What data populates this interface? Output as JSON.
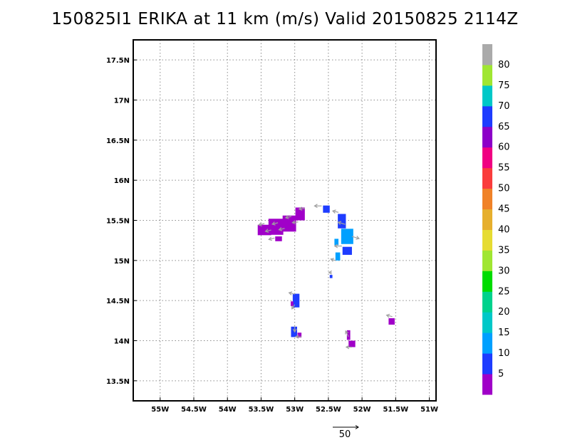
{
  "chart_data": {
    "type": "heatmap",
    "title": "150825I1 ERIKA at 11 km (m/s) Valid 20150825 2114Z",
    "xlabel": "",
    "ylabel": "",
    "xlim": [
      -55.4,
      -50.9
    ],
    "ylim": [
      13.25,
      17.75
    ],
    "x_ticks": [
      {
        "value": -55.0,
        "label": "55W"
      },
      {
        "value": -54.5,
        "label": "54.5W"
      },
      {
        "value": -54.0,
        "label": "54W"
      },
      {
        "value": -53.5,
        "label": "53.5W"
      },
      {
        "value": -53.0,
        "label": "53W"
      },
      {
        "value": -52.5,
        "label": "52.5W"
      },
      {
        "value": -52.0,
        "label": "52W"
      },
      {
        "value": -51.5,
        "label": "51.5W"
      },
      {
        "value": -51.0,
        "label": "51W"
      }
    ],
    "y_ticks": [
      {
        "value": 13.5,
        "label": "13.5N"
      },
      {
        "value": 14.0,
        "label": "14N"
      },
      {
        "value": 14.5,
        "label": "14.5N"
      },
      {
        "value": 15.0,
        "label": "15N"
      },
      {
        "value": 15.5,
        "label": "15.5N"
      },
      {
        "value": 16.0,
        "label": "16N"
      },
      {
        "value": 16.5,
        "label": "16.5N"
      },
      {
        "value": 17.0,
        "label": "17N"
      },
      {
        "value": 17.5,
        "label": "17.5N"
      }
    ],
    "grid": true,
    "colorbar": {
      "labels": [
        "5",
        "10",
        "15",
        "20",
        "25",
        "30",
        "35",
        "40",
        "45",
        "50",
        "55",
        "60",
        "65",
        "70",
        "75",
        "80"
      ],
      "colors": [
        "#a000c8",
        "#1e3cff",
        "#00a0ff",
        "#00c8c8",
        "#00d28c",
        "#00dc00",
        "#a0e632",
        "#e6dc32",
        "#e6af2d",
        "#f08228",
        "#fa3c3c",
        "#f00082",
        "#8c00c8",
        "#1e3cff",
        "#00c8c8",
        "#a0e632",
        "#aaaaaa"
      ]
    },
    "cells": [
      {
        "lon": -53.45,
        "lat": 15.38,
        "w": 0.2,
        "h": 0.13,
        "value": 3
      },
      {
        "lon": -53.28,
        "lat": 15.42,
        "w": 0.22,
        "h": 0.2,
        "value": 4
      },
      {
        "lon": -53.08,
        "lat": 15.46,
        "w": 0.2,
        "h": 0.2,
        "value": 4
      },
      {
        "lon": -52.92,
        "lat": 15.58,
        "w": 0.14,
        "h": 0.16,
        "value": 4
      },
      {
        "lon": -53.24,
        "lat": 15.27,
        "w": 0.1,
        "h": 0.06,
        "value": 4
      },
      {
        "lon": -52.53,
        "lat": 15.64,
        "w": 0.1,
        "h": 0.09,
        "value": 7
      },
      {
        "lon": -52.3,
        "lat": 15.49,
        "w": 0.12,
        "h": 0.18,
        "value": 9
      },
      {
        "lon": -52.22,
        "lat": 15.3,
        "w": 0.18,
        "h": 0.19,
        "value": 10
      },
      {
        "lon": -52.22,
        "lat": 15.12,
        "w": 0.14,
        "h": 0.1,
        "value": 9
      },
      {
        "lon": -52.38,
        "lat": 15.23,
        "w": 0.06,
        "h": 0.08,
        "value": 14
      },
      {
        "lon": -52.36,
        "lat": 15.05,
        "w": 0.07,
        "h": 0.1,
        "value": 10
      },
      {
        "lon": -52.46,
        "lat": 14.8,
        "w": 0.04,
        "h": 0.04,
        "value": 9
      },
      {
        "lon": -52.98,
        "lat": 14.5,
        "w": 0.1,
        "h": 0.17,
        "value": 9
      },
      {
        "lon": -53.04,
        "lat": 14.46,
        "w": 0.04,
        "h": 0.06,
        "value": 4
      },
      {
        "lon": -53.01,
        "lat": 14.11,
        "w": 0.09,
        "h": 0.13,
        "value": 9
      },
      {
        "lon": -52.93,
        "lat": 14.07,
        "w": 0.06,
        "h": 0.06,
        "value": 4
      },
      {
        "lon": -52.15,
        "lat": 13.96,
        "w": 0.1,
        "h": 0.08,
        "value": 4
      },
      {
        "lon": -52.2,
        "lat": 14.07,
        "w": 0.05,
        "h": 0.12,
        "value": 4
      },
      {
        "lon": -51.56,
        "lat": 14.24,
        "w": 0.09,
        "h": 0.08,
        "value": 4
      }
    ],
    "vectors": [
      {
        "lon": -53.45,
        "lat": 15.46,
        "u": -8,
        "v": -2
      },
      {
        "lon": -53.35,
        "lat": 15.38,
        "u": -8,
        "v": -2
      },
      {
        "lon": -53.25,
        "lat": 15.47,
        "u": -8,
        "v": -2
      },
      {
        "lon": -53.15,
        "lat": 15.4,
        "u": -8,
        "v": -2
      },
      {
        "lon": -53.05,
        "lat": 15.55,
        "u": -8,
        "v": -2
      },
      {
        "lon": -52.95,
        "lat": 15.48,
        "u": -8,
        "v": -1
      },
      {
        "lon": -52.85,
        "lat": 15.65,
        "u": -8,
        "v": -1
      },
      {
        "lon": -53.3,
        "lat": 15.28,
        "u": -8,
        "v": -2
      },
      {
        "lon": -52.6,
        "lat": 15.68,
        "u": -10,
        "v": 0
      },
      {
        "lon": -52.35,
        "lat": 15.6,
        "u": -8,
        "v": 2
      },
      {
        "lon": -52.25,
        "lat": 15.45,
        "u": -10,
        "v": 3
      },
      {
        "lon": -52.15,
        "lat": 15.3,
        "u": 10,
        "v": -3
      },
      {
        "lon": -52.3,
        "lat": 15.18,
        "u": -10,
        "v": 0
      },
      {
        "lon": -52.4,
        "lat": 15.0,
        "u": -6,
        "v": 2
      },
      {
        "lon": -52.45,
        "lat": 14.85,
        "u": -4,
        "v": 0
      },
      {
        "lon": -53.0,
        "lat": 14.58,
        "u": -8,
        "v": 2
      },
      {
        "lon": -53.0,
        "lat": 14.45,
        "u": -4,
        "v": -6
      },
      {
        "lon": -53.0,
        "lat": 14.18,
        "u": 0,
        "v": -8
      },
      {
        "lon": -52.9,
        "lat": 14.05,
        "u": -8,
        "v": 0
      },
      {
        "lon": -52.2,
        "lat": 14.05,
        "u": -4,
        "v": 8
      },
      {
        "lon": -52.15,
        "lat": 13.92,
        "u": -8,
        "v": 0
      },
      {
        "lon": -51.55,
        "lat": 14.3,
        "u": -8,
        "v": 2
      }
    ],
    "reference_vector": {
      "label": "50",
      "magnitude": 50
    }
  }
}
